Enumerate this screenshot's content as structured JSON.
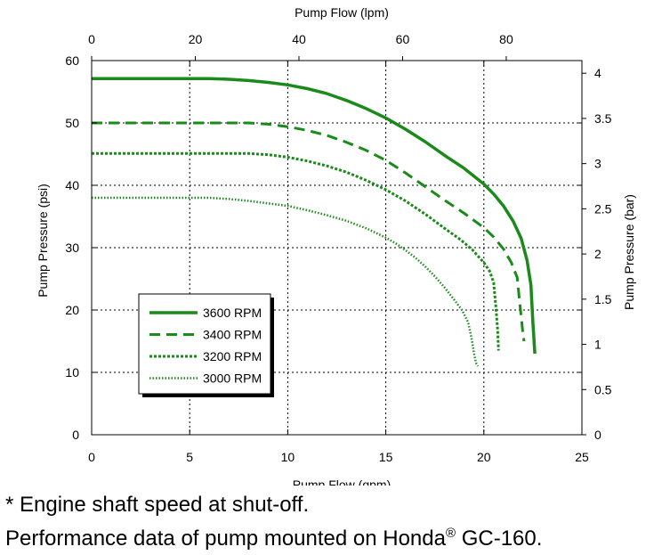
{
  "chart_data": {
    "type": "line",
    "title": "",
    "xlabel": "Pump Flow (gpm)",
    "x2label": "Pump Flow (lpm)",
    "ylabel": "Pump Pressure (psi)",
    "y2label": "Pump Pressure (bar)",
    "xlim": [
      0,
      25
    ],
    "ylim": [
      0,
      60
    ],
    "x2lim": [
      0,
      94.6
    ],
    "y2lim": [
      0,
      4.14
    ],
    "xticks": [
      "0",
      "5",
      "10",
      "15",
      "20",
      "25"
    ],
    "yticks": [
      "0",
      "10",
      "20",
      "30",
      "40",
      "50",
      "60"
    ],
    "x2ticks": [
      "0",
      "20",
      "40",
      "60",
      "80"
    ],
    "y2ticks": [
      "0",
      "0.5",
      "1",
      "1.5",
      "2",
      "2.5",
      "3",
      "3.5",
      "4"
    ],
    "grid": true,
    "legend_position": "lower-left",
    "series": [
      {
        "name": "3600 RPM",
        "style": "solid",
        "color": "#1a8a1a",
        "x": [
          0,
          2,
          4,
          6,
          7,
          8,
          9,
          10,
          11,
          12,
          13,
          14,
          15,
          16,
          17,
          18,
          19,
          20,
          20.5,
          21,
          21.5,
          21.9,
          22.2,
          22.4,
          22.5,
          22.6
        ],
        "y": [
          57.1,
          57.1,
          57.1,
          57.1,
          57.0,
          56.8,
          56.5,
          56.1,
          55.5,
          54.7,
          53.6,
          52.3,
          50.8,
          49.0,
          47.0,
          44.8,
          42.7,
          40.2,
          38.6,
          36.7,
          34.2,
          31.5,
          28.0,
          24.0,
          18.0,
          13.0
        ]
      },
      {
        "name": "3400 RPM",
        "style": "dashed",
        "color": "#1a8a1a",
        "x": [
          0,
          2,
          4,
          6,
          8,
          9,
          10,
          11,
          12,
          13,
          14,
          15,
          16,
          17,
          18,
          19,
          20,
          20.5,
          21,
          21.4,
          21.7,
          21.8,
          21.9,
          22.0,
          22.05
        ],
        "y": [
          50.0,
          50.0,
          50.0,
          50.0,
          50.0,
          49.8,
          49.4,
          48.8,
          48.0,
          46.9,
          45.6,
          44.0,
          42.0,
          39.8,
          37.6,
          35.5,
          33.2,
          31.7,
          29.8,
          27.6,
          25.2,
          22.0,
          19.0,
          16.0,
          15.0
        ]
      },
      {
        "name": "3200 RPM",
        "style": "dotted",
        "color": "#1a8a1a",
        "x": [
          0,
          2,
          4,
          6,
          8,
          9,
          10,
          11,
          12,
          13,
          14,
          15,
          16,
          17,
          18,
          18.8,
          19.4,
          20.0,
          20.3,
          20.5,
          20.6,
          20.7,
          20.75
        ],
        "y": [
          45.1,
          45.1,
          45.1,
          45.1,
          45.1,
          44.9,
          44.5,
          43.9,
          43.1,
          42.1,
          40.8,
          39.3,
          37.5,
          35.4,
          33.1,
          31.3,
          29.7,
          27.6,
          26.2,
          24.4,
          21.0,
          17.0,
          13.5
        ]
      },
      {
        "name": "3000 RPM",
        "style": "dash-dot",
        "color": "#1a8a1a",
        "x": [
          0,
          2,
          4,
          6,
          7,
          8,
          9,
          10,
          11,
          12,
          13,
          14,
          15,
          15.5,
          16,
          16.5,
          17,
          17.5,
          18,
          18.5,
          18.9,
          19.2,
          19.4,
          19.5,
          19.6,
          19.7
        ],
        "y": [
          38.0,
          38.0,
          38.0,
          38.0,
          37.8,
          37.5,
          37.1,
          36.7,
          36.0,
          35.2,
          34.3,
          33.1,
          31.6,
          30.7,
          29.6,
          28.4,
          27.0,
          25.4,
          23.6,
          21.6,
          19.9,
          18.0,
          15.0,
          13.0,
          11.5,
          11.0
        ]
      }
    ]
  },
  "footnotes": {
    "line1": "* Engine shaft speed at shut-off.",
    "line2_prefix": "Performance data of pump mounted on Honda",
    "line2_mark": "®",
    "line2_suffix": " GC-160."
  }
}
